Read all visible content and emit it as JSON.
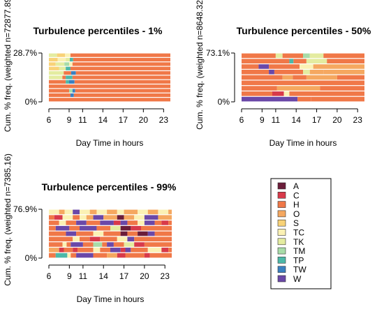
{
  "legend": {
    "items": [
      {
        "label": "A",
        "color": "#6b1d3a"
      },
      {
        "label": "C",
        "color": "#d83a4a"
      },
      {
        "label": "H",
        "color": "#f07848"
      },
      {
        "label": "O",
        "color": "#f5a860"
      },
      {
        "label": "S",
        "color": "#f8d278"
      },
      {
        "label": "TC",
        "color": "#fbf1b4"
      },
      {
        "label": "TK",
        "color": "#e4eca0"
      },
      {
        "label": "TM",
        "color": "#a8dca8"
      },
      {
        "label": "TP",
        "color": "#4cb8a8"
      },
      {
        "label": "TW",
        "color": "#3a80c0"
      },
      {
        "label": "W",
        "color": "#6a48a8"
      }
    ]
  },
  "chart_data": [
    {
      "type": "stacked-sequence",
      "title": "Turbulence percentiles - 1%",
      "xlabel": "Day Time in hours",
      "ylabel": "Cum. % freq. (weighted n=72877.89)",
      "y_ticks": [
        "0%",
        "28.7%"
      ],
      "x_ticks": [
        6,
        9,
        11,
        14,
        17,
        20,
        23
      ],
      "xlim": [
        6,
        24
      ],
      "n_sequences": 11,
      "dominant": "H",
      "rows": [
        [
          [
            6,
            24,
            "H"
          ]
        ],
        [
          [
            6,
            9.2,
            "H"
          ],
          [
            9.2,
            9.7,
            "TW"
          ],
          [
            9.7,
            24,
            "H"
          ]
        ],
        [
          [
            6,
            9.0,
            "H"
          ],
          [
            9.0,
            9.5,
            "TM"
          ],
          [
            9.5,
            9.9,
            "TW"
          ],
          [
            9.9,
            24,
            "H"
          ]
        ],
        [
          [
            6,
            24,
            "H"
          ]
        ],
        [
          [
            6,
            8.5,
            "H"
          ],
          [
            8.5,
            9.0,
            "TP"
          ],
          [
            9.0,
            9.8,
            "TW"
          ],
          [
            9.8,
            24,
            "H"
          ]
        ],
        [
          [
            6,
            8.0,
            "TK"
          ],
          [
            8.0,
            8.5,
            "H"
          ],
          [
            8.5,
            9.5,
            "TP"
          ],
          [
            9.5,
            24,
            "H"
          ]
        ],
        [
          [
            6,
            8.2,
            "TK"
          ],
          [
            8.2,
            9.3,
            "H"
          ],
          [
            9.3,
            10.0,
            "TW"
          ],
          [
            10.0,
            24,
            "H"
          ]
        ],
        [
          [
            6,
            7.5,
            "S"
          ],
          [
            7.5,
            8.5,
            "TK"
          ],
          [
            8.5,
            9.2,
            "TP"
          ],
          [
            9.2,
            24,
            "H"
          ]
        ],
        [
          [
            6,
            7.0,
            "S"
          ],
          [
            7.0,
            8.3,
            "TK"
          ],
          [
            8.3,
            9.0,
            "TM"
          ],
          [
            9.0,
            9.5,
            "TC"
          ],
          [
            9.5,
            24,
            "H"
          ]
        ],
        [
          [
            6,
            7.3,
            "S"
          ],
          [
            7.3,
            8.5,
            "TC"
          ],
          [
            8.5,
            9.1,
            "TK"
          ],
          [
            9.1,
            9.6,
            "TP"
          ],
          [
            9.6,
            24,
            "H"
          ]
        ],
        [
          [
            6,
            7.2,
            "TK"
          ],
          [
            7.2,
            8.4,
            "S"
          ],
          [
            8.4,
            9.2,
            "TC"
          ],
          [
            9.2,
            24,
            "H"
          ]
        ]
      ]
    },
    {
      "type": "stacked-sequence",
      "title": "Turbulence percentiles - 50%",
      "xlabel": "Day Time in hours",
      "ylabel": "Cum. % freq. (weighted n=8648.32)",
      "y_ticks": [
        "0%",
        "73.1%"
      ],
      "x_ticks": [
        6,
        9,
        11,
        14,
        17,
        20,
        23
      ],
      "xlim": [
        6,
        24
      ],
      "n_sequences": 9,
      "dominant": "H",
      "rows": [
        [
          [
            6,
            14.2,
            "W"
          ],
          [
            14.2,
            16.2,
            "H"
          ],
          [
            16.2,
            24,
            "H"
          ]
        ],
        [
          [
            6,
            10.5,
            "H"
          ],
          [
            10.5,
            12.2,
            "C"
          ],
          [
            12.2,
            13.0,
            "TC"
          ],
          [
            13.0,
            24,
            "H"
          ]
        ],
        [
          [
            6,
            11.2,
            "H"
          ],
          [
            11.2,
            17.5,
            "O"
          ],
          [
            17.5,
            24,
            "H"
          ]
        ],
        [
          [
            6,
            24,
            "H"
          ]
        ],
        [
          [
            6,
            12.0,
            "H"
          ],
          [
            12.0,
            13.5,
            "O"
          ],
          [
            13.5,
            15.5,
            "H"
          ],
          [
            15.5,
            20.0,
            "O"
          ],
          [
            20.0,
            24,
            "H"
          ]
        ],
        [
          [
            6,
            10.0,
            "H"
          ],
          [
            10.0,
            10.8,
            "W"
          ],
          [
            10.8,
            15.0,
            "H"
          ],
          [
            15.0,
            16.0,
            "TK"
          ],
          [
            16.0,
            18.0,
            "O"
          ],
          [
            18.0,
            24,
            "O"
          ]
        ],
        [
          [
            6,
            8.5,
            "H"
          ],
          [
            8.5,
            10.0,
            "W"
          ],
          [
            10.0,
            14.5,
            "H"
          ],
          [
            14.5,
            16.5,
            "TC"
          ],
          [
            16.5,
            24,
            "O"
          ]
        ],
        [
          [
            6,
            13.0,
            "H"
          ],
          [
            13.0,
            13.6,
            "TP"
          ],
          [
            13.6,
            15.5,
            "H"
          ],
          [
            15.5,
            18.5,
            "TK"
          ],
          [
            18.5,
            24,
            "H"
          ]
        ],
        [
          [
            6,
            11.0,
            "H"
          ],
          [
            11.0,
            12.0,
            "TK"
          ],
          [
            12.0,
            15.0,
            "H"
          ],
          [
            15.0,
            16.0,
            "TM"
          ],
          [
            16.0,
            18.0,
            "TK"
          ],
          [
            18.0,
            24,
            "H"
          ]
        ]
      ]
    },
    {
      "type": "stacked-sequence",
      "title": "Turbulence percentiles - 99%",
      "xlabel": "Day Time in hours",
      "ylabel": "Cum. % freq. (weighted n=7385.16)",
      "y_ticks": [
        "0%",
        "76.9%"
      ],
      "x_ticks": [
        6,
        9,
        11,
        14,
        17,
        20,
        23
      ],
      "xlim": [
        6,
        24
      ],
      "n_sequences": 9,
      "dominant": "H",
      "rows": [
        [
          [
            6,
            7.0,
            "H"
          ],
          [
            7.0,
            8.7,
            "TP"
          ],
          [
            8.7,
            9.2,
            "TC"
          ],
          [
            9.2,
            10.0,
            "H"
          ],
          [
            10.0,
            12.5,
            "W"
          ],
          [
            12.5,
            14.5,
            "H"
          ],
          [
            14.5,
            16.0,
            "O"
          ],
          [
            16.0,
            17.2,
            "C"
          ],
          [
            17.2,
            20.0,
            "H"
          ],
          [
            20.0,
            20.8,
            "C"
          ],
          [
            20.8,
            24,
            "H"
          ]
        ],
        [
          [
            6,
            7.5,
            "O"
          ],
          [
            7.5,
            8.2,
            "C"
          ],
          [
            8.2,
            9.5,
            "H"
          ],
          [
            9.5,
            10.2,
            "C"
          ],
          [
            10.2,
            12.5,
            "H"
          ],
          [
            12.5,
            13.5,
            "TC"
          ],
          [
            13.5,
            15.0,
            "H"
          ],
          [
            15.0,
            16.5,
            "W"
          ],
          [
            16.5,
            17.2,
            "C"
          ],
          [
            17.2,
            18.0,
            "W"
          ],
          [
            18.0,
            20.5,
            "H"
          ],
          [
            20.5,
            22.5,
            "TC"
          ],
          [
            22.5,
            23.5,
            "C"
          ],
          [
            23.5,
            24,
            "H"
          ]
        ],
        [
          [
            6,
            8.0,
            "H"
          ],
          [
            8.0,
            8.6,
            "TC"
          ],
          [
            8.6,
            9.2,
            "H"
          ],
          [
            9.2,
            11.0,
            "W"
          ],
          [
            11.0,
            12.5,
            "H"
          ],
          [
            12.5,
            13.8,
            "TM"
          ],
          [
            13.8,
            14.5,
            "H"
          ],
          [
            14.5,
            15.5,
            "W"
          ],
          [
            15.5,
            17.0,
            "H"
          ],
          [
            17.0,
            18.5,
            "TK"
          ],
          [
            18.5,
            20.0,
            "C"
          ],
          [
            20.0,
            24,
            "H"
          ]
        ],
        [
          [
            6,
            9.5,
            "H"
          ],
          [
            9.5,
            10.5,
            "TC"
          ],
          [
            10.5,
            12.0,
            "H"
          ],
          [
            12.0,
            13.5,
            "C"
          ],
          [
            13.5,
            16.0,
            "H"
          ],
          [
            16.0,
            17.5,
            "TC"
          ],
          [
            17.5,
            18.5,
            "W"
          ],
          [
            18.5,
            24,
            "H"
          ]
        ],
        [
          [
            6,
            8.5,
            "H"
          ],
          [
            8.5,
            10.0,
            "W"
          ],
          [
            10.0,
            12.5,
            "H"
          ],
          [
            12.5,
            14.0,
            "TC"
          ],
          [
            14.0,
            16.5,
            "H"
          ],
          [
            16.5,
            17.5,
            "A"
          ],
          [
            17.5,
            19.0,
            "H"
          ],
          [
            19.0,
            20.5,
            "A"
          ],
          [
            20.5,
            21.5,
            "W"
          ],
          [
            21.5,
            24,
            "H"
          ]
        ],
        [
          [
            6,
            7.0,
            "H"
          ],
          [
            7.0,
            9.0,
            "W"
          ],
          [
            9.0,
            10.5,
            "H"
          ],
          [
            10.5,
            13.0,
            "W"
          ],
          [
            13.0,
            15.0,
            "H"
          ],
          [
            15.0,
            16.5,
            "TK"
          ],
          [
            16.5,
            18.0,
            "A"
          ],
          [
            18.0,
            19.5,
            "C"
          ],
          [
            19.5,
            24,
            "H"
          ]
        ],
        [
          [
            6,
            7.5,
            "H"
          ],
          [
            7.5,
            8.5,
            "TC"
          ],
          [
            8.5,
            10.0,
            "H"
          ],
          [
            10.0,
            11.5,
            "W"
          ],
          [
            11.5,
            13.5,
            "H"
          ],
          [
            13.5,
            15.5,
            "W"
          ],
          [
            15.5,
            16.5,
            "C"
          ],
          [
            16.5,
            17.5,
            "W"
          ],
          [
            17.5,
            19.0,
            "H"
          ],
          [
            19.0,
            20.0,
            "TC"
          ],
          [
            20.0,
            21.5,
            "W"
          ],
          [
            21.5,
            22.5,
            "H"
          ],
          [
            22.5,
            23.5,
            "C"
          ],
          [
            23.5,
            24,
            "H"
          ]
        ],
        [
          [
            6,
            6.8,
            "H"
          ],
          [
            6.8,
            8.0,
            "C"
          ],
          [
            8.0,
            9.5,
            "TC"
          ],
          [
            9.5,
            10.5,
            "H"
          ],
          [
            10.5,
            11.5,
            "TC"
          ],
          [
            11.5,
            12.5,
            "O"
          ],
          [
            12.5,
            14.0,
            "W"
          ],
          [
            14.0,
            16.0,
            "O"
          ],
          [
            16.0,
            17.0,
            "A"
          ],
          [
            17.0,
            18.5,
            "O"
          ],
          [
            18.5,
            20.0,
            "TC"
          ],
          [
            20.0,
            22.0,
            "W"
          ],
          [
            22.0,
            24,
            "O"
          ]
        ],
        [
          [
            6,
            7.5,
            "TC"
          ],
          [
            7.5,
            8.3,
            "O"
          ],
          [
            8.3,
            9.5,
            "TC"
          ],
          [
            9.5,
            10.5,
            "W"
          ],
          [
            10.5,
            12.0,
            "TC"
          ],
          [
            12.0,
            13.0,
            "O"
          ],
          [
            13.0,
            14.5,
            "TC"
          ],
          [
            14.5,
            16.0,
            "O"
          ],
          [
            16.0,
            17.0,
            "TC"
          ],
          [
            17.0,
            19.0,
            "O"
          ],
          [
            19.0,
            20.5,
            "TC"
          ],
          [
            20.5,
            22.0,
            "O"
          ],
          [
            22.0,
            23.5,
            "TC"
          ],
          [
            23.5,
            24,
            "O"
          ]
        ]
      ]
    }
  ]
}
